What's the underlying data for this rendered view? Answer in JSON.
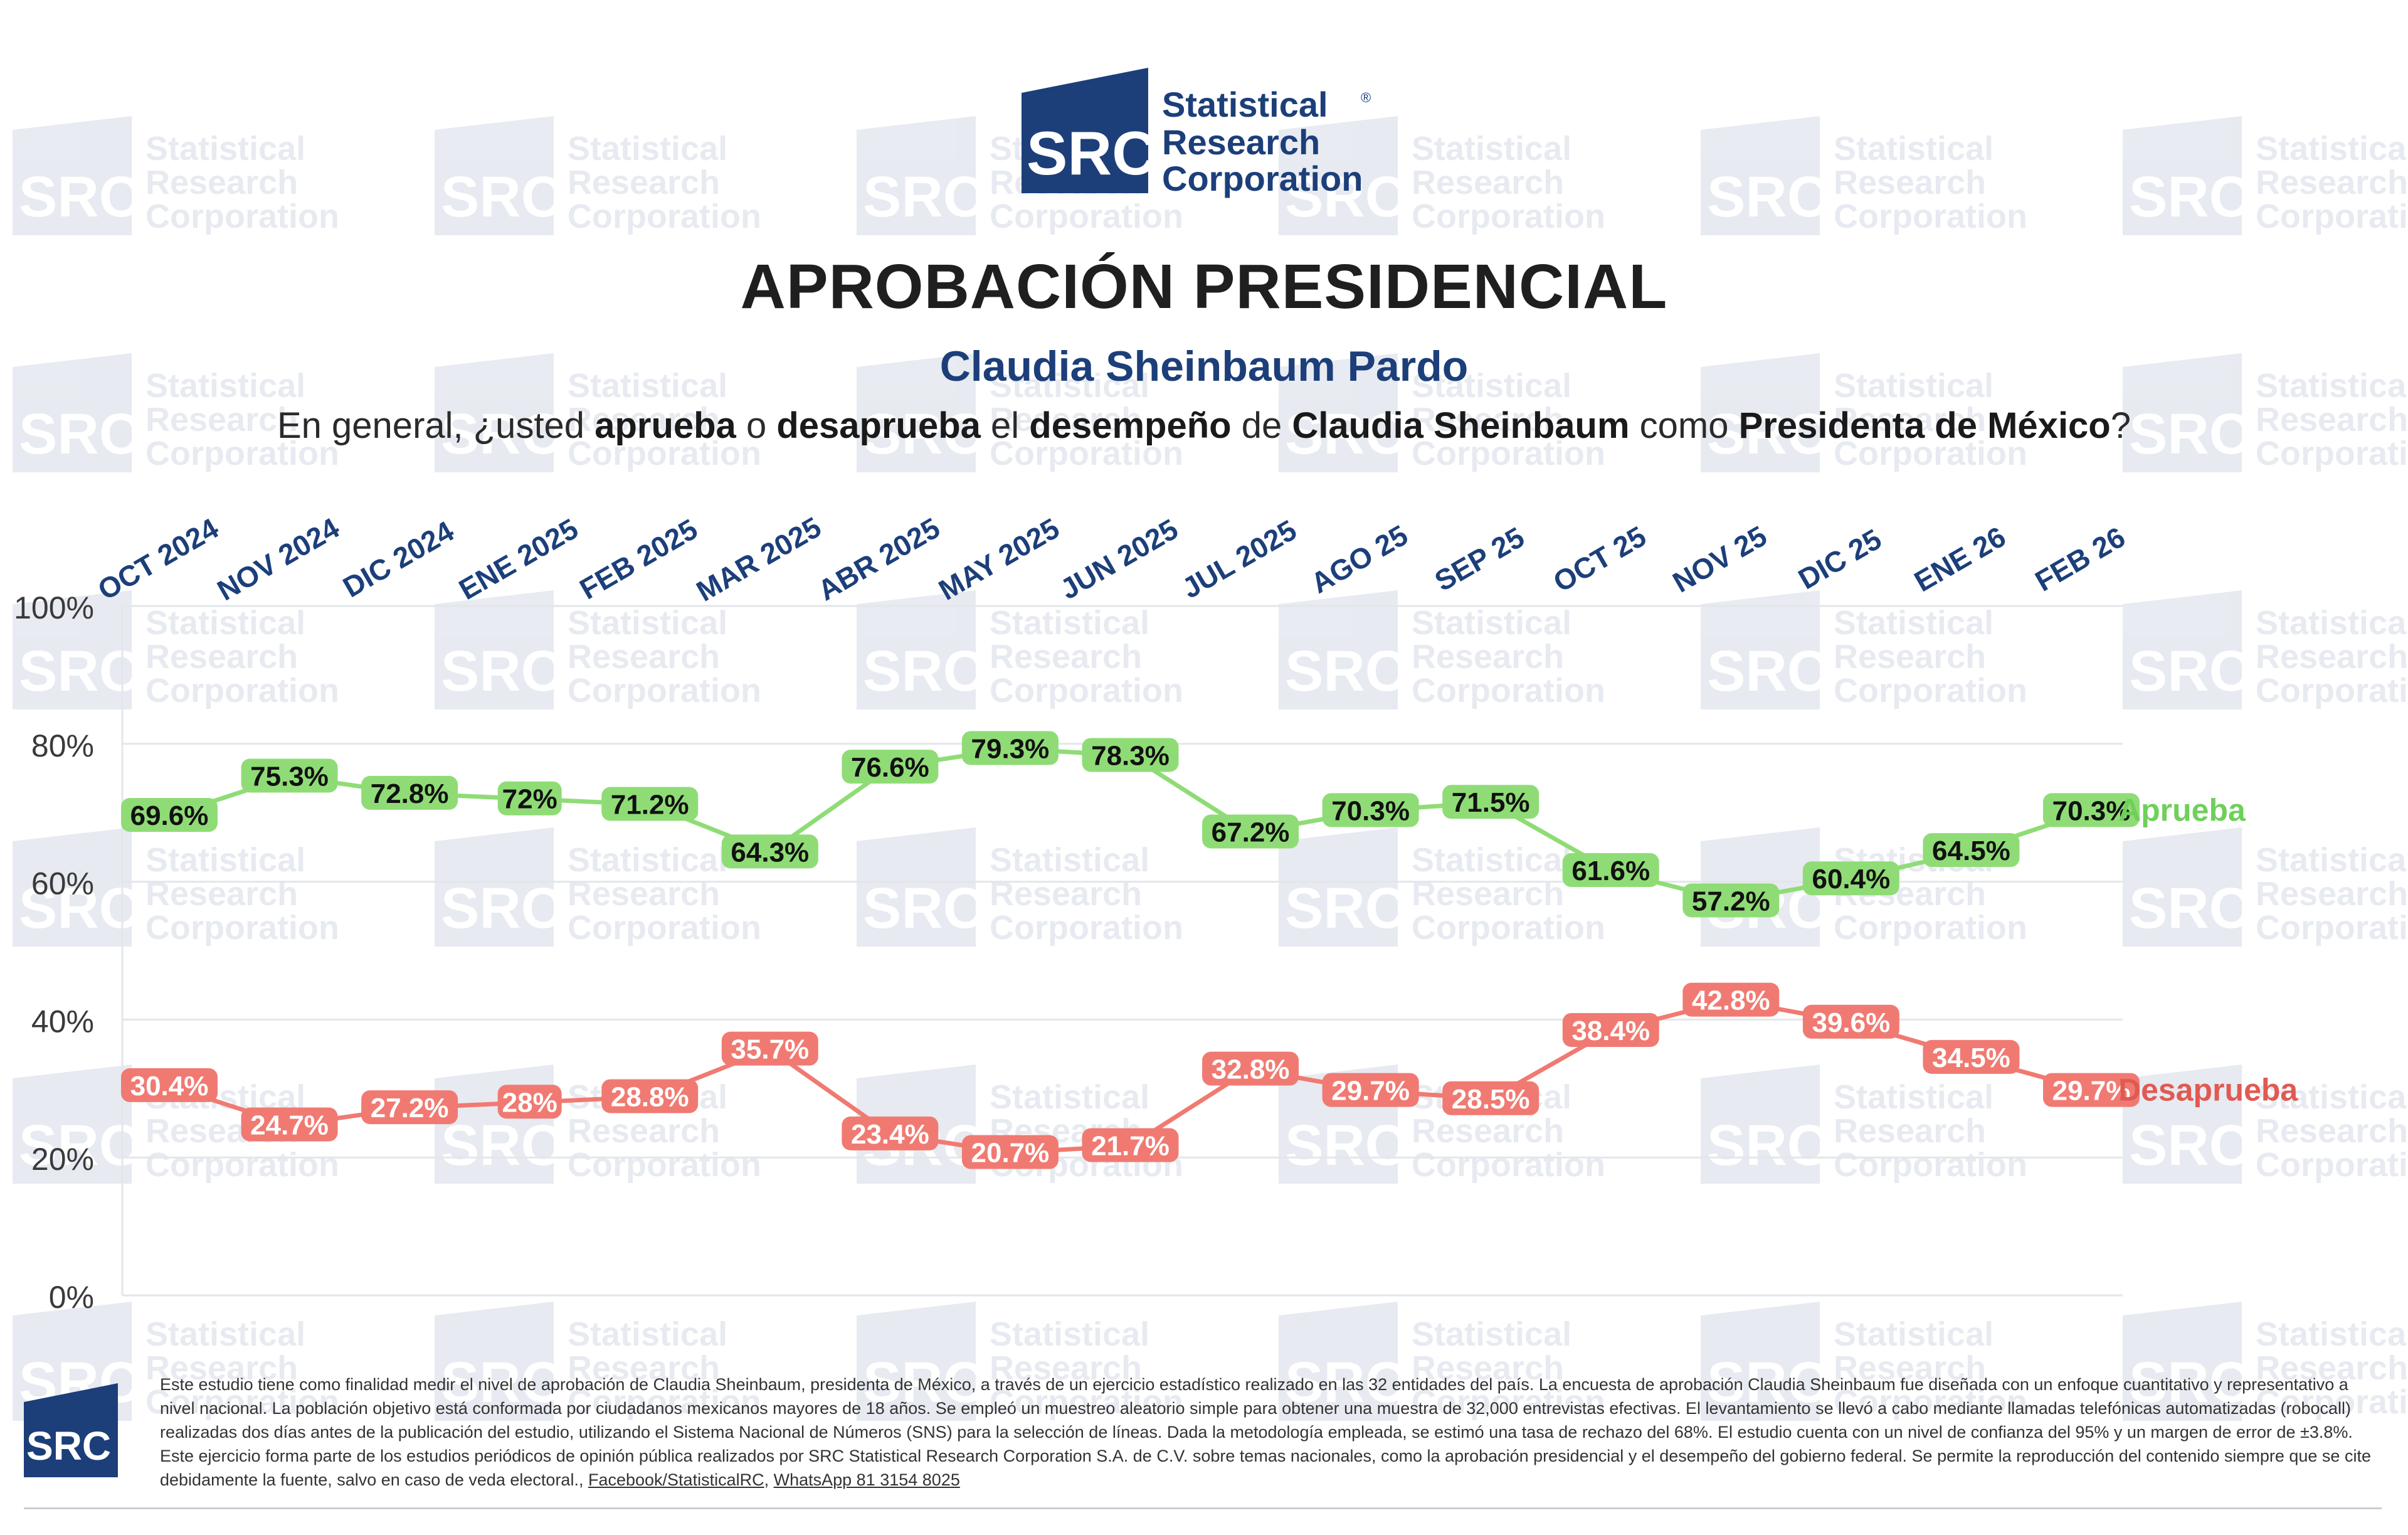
{
  "brand": {
    "logo_letters": "SRC",
    "name_lines": [
      "Statistical",
      "Research",
      "Corporation"
    ],
    "registered": "®"
  },
  "header": {
    "title": "APROBACIÓN PRESIDENCIAL",
    "subtitle": "Claudia Sheinbaum Pardo",
    "question_parts": [
      {
        "t": "En general, ¿usted ",
        "b": false
      },
      {
        "t": "aprueba",
        "b": true
      },
      {
        "t": " o ",
        "b": false
      },
      {
        "t": "desaprueba",
        "b": true
      },
      {
        "t": " el ",
        "b": false
      },
      {
        "t": "desempeño",
        "b": true
      },
      {
        "t": " de ",
        "b": false
      },
      {
        "t": "Claudia Sheinbaum",
        "b": true
      },
      {
        "t": " como ",
        "b": false
      },
      {
        "t": "Presidenta de México",
        "b": true
      },
      {
        "t": "?",
        "b": false
      }
    ]
  },
  "colors": {
    "aprueba": "#8fdc76",
    "aprueba_label": "#6fcf5a",
    "desaprueba": "#f07a72",
    "desaprueba_label": "#e05a52",
    "month_labels": "#1c3f7a",
    "brand_blue": "#1c3f7a",
    "grid": "#e3e6ea"
  },
  "chart_data": {
    "type": "line",
    "x": [
      "OCT 2024",
      "NOV 2024",
      "DIC 2024",
      "ENE 2025",
      "FEB 2025",
      "MAR 2025",
      "ABR 2025",
      "MAY 2025",
      "JUN 2025",
      "JUL 2025",
      "AGO 25",
      "SEP 25",
      "OCT 25",
      "NOV 25",
      "DIC 25",
      "ENE 26",
      "FEB 26"
    ],
    "series": [
      {
        "name": "Aprueba",
        "values": [
          69.6,
          75.3,
          72.8,
          72,
          71.2,
          64.3,
          76.6,
          79.3,
          78.3,
          67.2,
          70.3,
          71.5,
          61.6,
          57.2,
          60.4,
          64.5,
          70.3
        ],
        "labels": [
          "69.6%",
          "75.3%",
          "72.8%",
          "72%",
          "71.2%",
          "64.3%",
          "76.6%",
          "79.3%",
          "78.3%",
          "67.2%",
          "70.3%",
          "71.5%",
          "61.6%",
          "57.2%",
          "60.4%",
          "64.5%",
          "70.3%"
        ]
      },
      {
        "name": "Desaprueba",
        "values": [
          30.4,
          24.7,
          27.2,
          28,
          28.8,
          35.7,
          23.4,
          20.7,
          21.7,
          32.8,
          29.7,
          28.5,
          38.4,
          42.8,
          39.6,
          34.5,
          29.7
        ],
        "labels": [
          "30.4%",
          "24.7%",
          "27.2%",
          "28%",
          "28.8%",
          "35.7%",
          "23.4%",
          "20.7%",
          "21.7%",
          "32.8%",
          "29.7%",
          "28.5%",
          "38.4%",
          "42.8%",
          "39.6%",
          "34.5%",
          "29.7%"
        ]
      }
    ],
    "ylim": [
      0,
      100
    ],
    "yticks": [
      0,
      20,
      40,
      60,
      80,
      100
    ],
    "ytick_labels": [
      "0%",
      "20%",
      "40%",
      "60%",
      "80%",
      "100%"
    ],
    "grid": true,
    "legend": "inline-right"
  },
  "footnote": {
    "text": "Este estudio tiene como finalidad medir el nivel de aprobación de Claudia Sheinbaum, presidenta de México, a través de un ejercicio estadístico realizado en las 32 entidades del país. La encuesta de aprobación Claudia Sheinbaum fue diseñada con un enfoque cuantitativo y representativo a nivel nacional. La población objetivo está conformada por ciudadanos mexicanos mayores de 18 años. Se empleó un muestreo aleatorio simple para obtener una muestra de 32,000 entrevistas efectivas. El levantamiento se llevó a cabo mediante llamadas telefónicas automatizadas (robocall) realizadas dos días antes de la publicación del estudio, utilizando el Sistema Nacional de Números (SNS) para la selección de líneas. Dada la metodología empleada, se estimó una tasa de rechazo del 68%. El estudio cuenta con un nivel de confianza del 95% y un margen de error de ±3.8%. Este ejercicio forma parte de los estudios periódicos de opinión pública realizados por SRC Statistical Research Corporation S.A. de C.V. sobre temas nacionales, como la aprobación presidencial y el desempeño del gobierno federal. Se permite la reproducción del contenido siempre que se cite debidamente la fuente, salvo en caso de veda electoral.,",
    "link1": "Facebook/StatisticalRC",
    "sep": ",",
    "link2": "WhatsApp 81 3154 8025"
  }
}
